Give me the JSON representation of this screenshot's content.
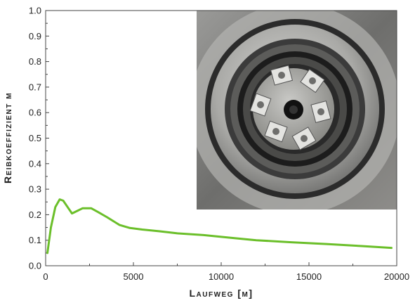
{
  "chart_data": {
    "type": "line",
    "xlabel": "Laufweg [m]",
    "ylabel": "Reibkoeffizient μ",
    "xlim": [
      0,
      20000
    ],
    "ylim": [
      0.0,
      1.0
    ],
    "x_ticks": [
      "0",
      "5000",
      "10000",
      "15000",
      "20000"
    ],
    "y_ticks": [
      "0.0",
      "0.1",
      "0.2",
      "0.3",
      "0.4",
      "0.5",
      "0.6",
      "0.7",
      "0.8",
      "0.9",
      "1.0"
    ],
    "grid": false,
    "series": [
      {
        "color": "#6bbf2a",
        "x": [
          100,
          300,
          550,
          800,
          1000,
          1200,
          1500,
          1800,
          2100,
          2600,
          3000,
          3500,
          4200,
          4800,
          5500,
          6500,
          7500,
          9000,
          10500,
          12000,
          14000,
          16000,
          18000,
          19700
        ],
        "y": [
          0.05,
          0.15,
          0.23,
          0.26,
          0.255,
          0.235,
          0.205,
          0.215,
          0.225,
          0.225,
          0.21,
          0.19,
          0.16,
          0.148,
          0.142,
          0.135,
          0.127,
          0.12,
          0.11,
          0.1,
          0.092,
          0.085,
          0.077,
          0.07
        ]
      }
    ],
    "inset_image": {
      "icon": "bearing-photo",
      "colors": [
        "#808080",
        "#c8c8c8",
        "#1a1a1a"
      ]
    }
  }
}
